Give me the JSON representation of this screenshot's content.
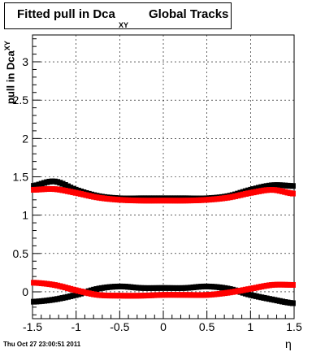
{
  "title": {
    "main": "Fitted pull in Dca",
    "subscript": "XY",
    "tail": "Global Tracks"
  },
  "timestamp": "Thu Oct 27 23:00:51 2011",
  "chart_data": {
    "type": "scatter",
    "title": "Fitted pull in Dca_XY Global Tracks",
    "xlabel": "η",
    "ylabel": "pull in Dca_XY",
    "xlim": [
      -1.5,
      1.5
    ],
    "ylim": [
      -0.35,
      3.35
    ],
    "grid": true,
    "x_ticks": [
      "-1.5",
      "-1",
      "-0.5",
      "0",
      "0.5",
      "1",
      "1.5"
    ],
    "y_ticks": [
      "0",
      "0.5",
      "1",
      "1.5",
      "2",
      "2.5",
      "3"
    ],
    "series": [
      {
        "color": "#000000",
        "x": [
          -1.5,
          -1.25,
          -1.0,
          -0.75,
          -0.5,
          -0.25,
          0.0,
          0.25,
          0.5,
          0.75,
          1.0,
          1.25,
          1.5
        ],
        "y": [
          1.38,
          1.44,
          1.33,
          1.25,
          1.22,
          1.22,
          1.22,
          1.22,
          1.22,
          1.25,
          1.33,
          1.39,
          1.38
        ]
      },
      {
        "color": "#ff0000",
        "x": [
          -1.5,
          -1.25,
          -1.0,
          -0.75,
          -0.5,
          -0.25,
          0.0,
          0.25,
          0.5,
          0.75,
          1.0,
          1.25,
          1.5
        ],
        "y": [
          1.33,
          1.34,
          1.29,
          1.23,
          1.2,
          1.19,
          1.19,
          1.19,
          1.2,
          1.23,
          1.29,
          1.33,
          1.28
        ]
      },
      {
        "color": "#000000",
        "x": [
          -1.5,
          -1.25,
          -1.0,
          -0.75,
          -0.5,
          -0.25,
          0.0,
          0.25,
          0.5,
          0.75,
          1.0,
          1.25,
          1.5
        ],
        "y": [
          -0.13,
          -0.1,
          -0.04,
          0.04,
          0.07,
          0.05,
          0.05,
          0.05,
          0.07,
          0.04,
          -0.04,
          -0.1,
          -0.15
        ]
      },
      {
        "color": "#ff0000",
        "x": [
          -1.5,
          -1.25,
          -1.0,
          -0.75,
          -0.5,
          -0.25,
          0.0,
          0.25,
          0.5,
          0.75,
          1.0,
          1.25,
          1.5
        ],
        "y": [
          0.12,
          0.09,
          0.02,
          -0.04,
          -0.05,
          -0.05,
          -0.04,
          -0.04,
          -0.04,
          -0.01,
          0.04,
          0.09,
          0.09
        ]
      }
    ]
  }
}
